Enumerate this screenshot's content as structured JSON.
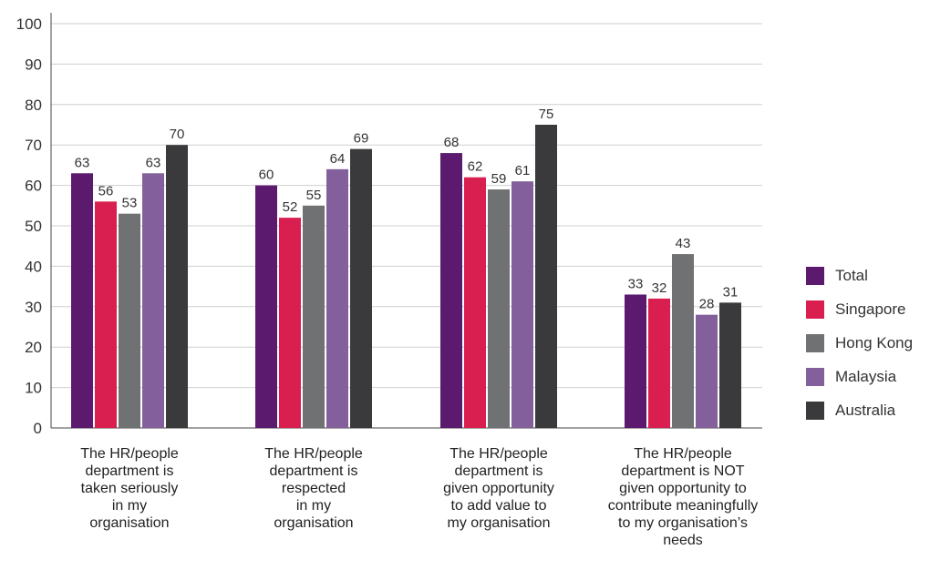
{
  "chart_data": {
    "type": "bar",
    "ylim": [
      0,
      100
    ],
    "yticks": [
      0,
      10,
      20,
      30,
      40,
      50,
      60,
      70,
      80,
      90,
      100
    ],
    "grid": true,
    "legend_position": "right",
    "categories": [
      "The HR/people\ndepartment is\ntaken seriously\nin my\norganisation",
      "The HR/people\ndepartment is\nrespected\nin my\norganisation",
      "The HR/people\ndepartment is\ngiven opportunity\nto add value to\nmy organisation",
      "The HR/people\ndepartment is NOT\ngiven opportunity to\ncontribute meaningfully\nto my organisation’s\nneeds"
    ],
    "series": [
      {
        "name": "Total",
        "color": "#5c1a6e",
        "values": [
          63,
          60,
          68,
          33
        ]
      },
      {
        "name": "Singapore",
        "color": "#d81f4f",
        "values": [
          56,
          52,
          62,
          32
        ]
      },
      {
        "name": "Hong Kong",
        "color": "#707172",
        "values": [
          53,
          55,
          59,
          43
        ]
      },
      {
        "name": "Malaysia",
        "color": "#83609b",
        "values": [
          63,
          64,
          61,
          28
        ]
      },
      {
        "name": "Australia",
        "color": "#3a3a3c",
        "values": [
          70,
          69,
          75,
          31
        ]
      }
    ]
  }
}
